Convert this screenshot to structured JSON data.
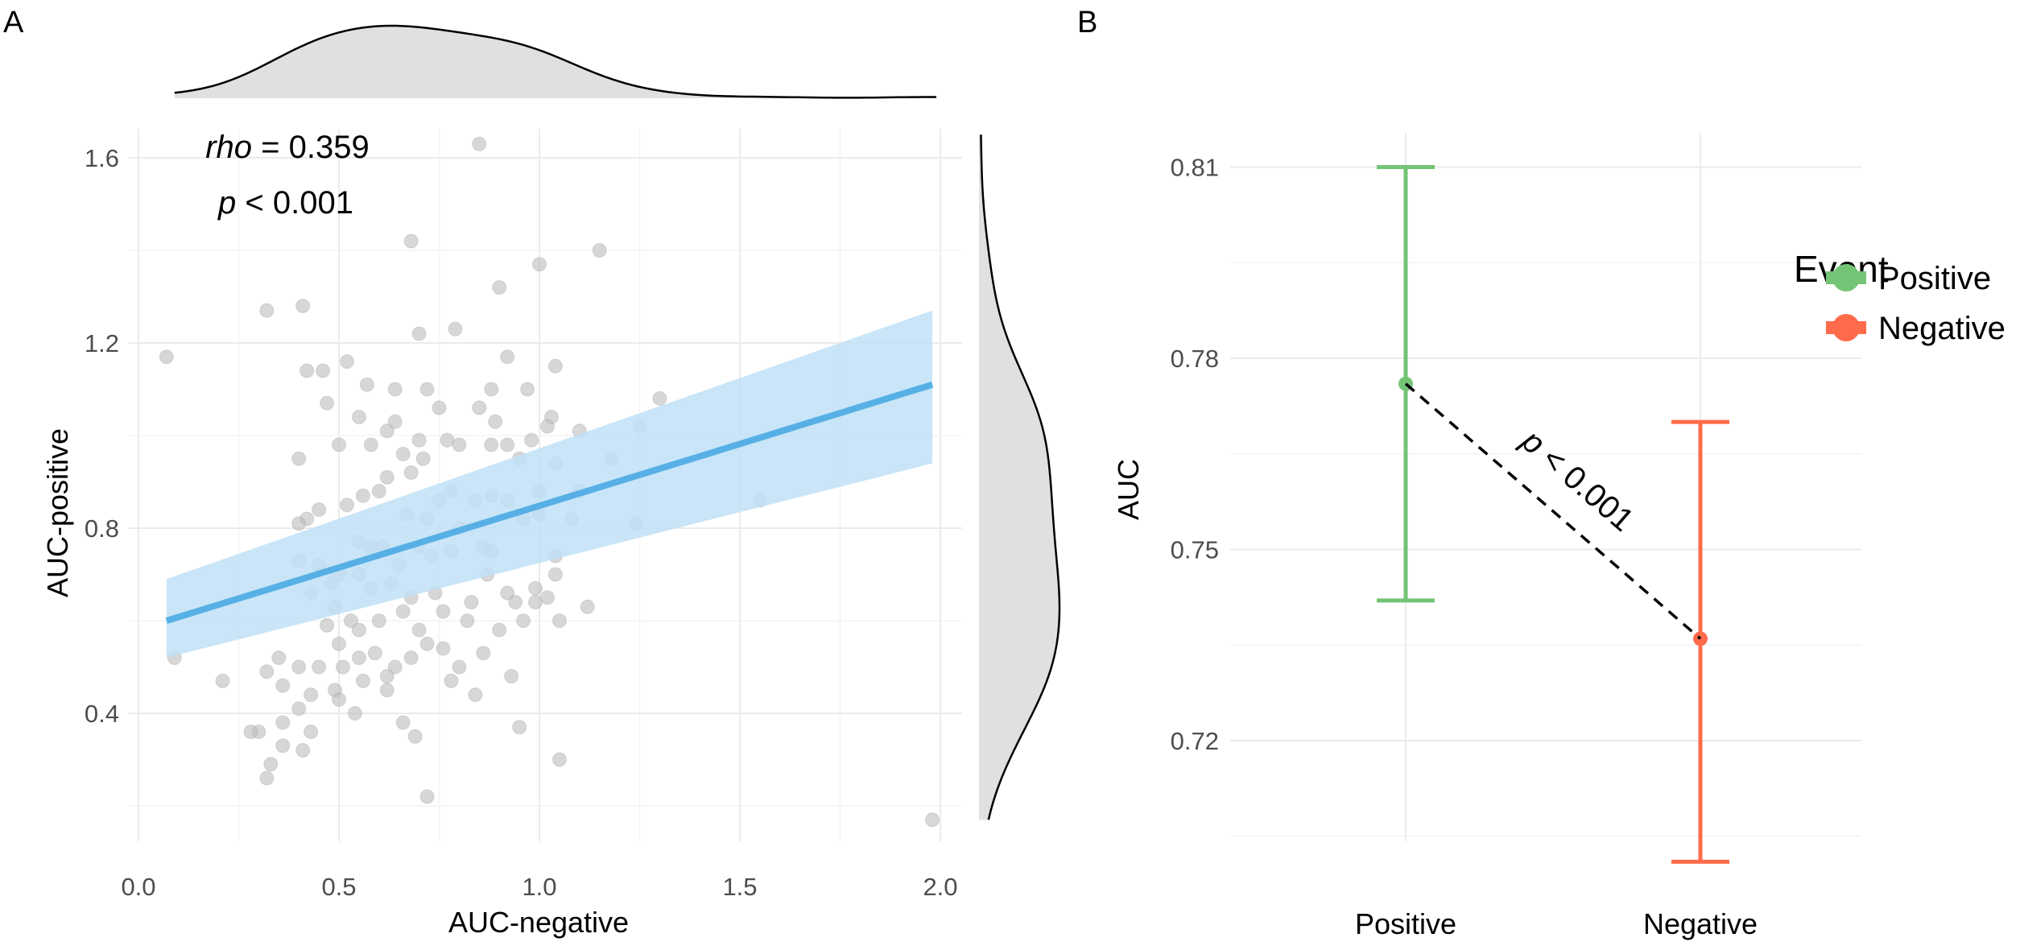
{
  "colors": {
    "point": "#bdbdbd",
    "fit_line": "#56b0e6",
    "ci_band": "#bfe1f6",
    "density_fill": "#e0e0e0",
    "positive": "#74c476",
    "negative": "#ff6b4a"
  },
  "chart_data": [
    {
      "panel_label": "A",
      "type": "scatter",
      "xlabel": "AUC-negative",
      "ylabel": "AUC-positive",
      "xlim": [
        -0.02,
        2.05
      ],
      "ylim": [
        0.13,
        1.7
      ],
      "xticks": [
        "0.0",
        "0.5",
        "1.0",
        "1.5",
        "2.0"
      ],
      "xtick_values": [
        0,
        0.5,
        1.0,
        1.5,
        2.0
      ],
      "yticks": [
        "0.4",
        "0.8",
        "1.2",
        "1.6"
      ],
      "ytick_values": [
        0.4,
        0.8,
        1.2,
        1.6
      ],
      "grid": true,
      "marginal_density": {
        "top": "AUC-negative",
        "right": "AUC-positive"
      },
      "annotation": {
        "rho_label": "rho",
        "rho_value": "= 0.359",
        "p_label": "p",
        "p_value": "< 0.001"
      },
      "fit": {
        "x": [
          0.07,
          1.98
        ],
        "y": [
          0.6,
          1.11
        ],
        "ci_lower": [
          0.52,
          0.94
        ],
        "ci_upper": [
          0.69,
          1.27
        ]
      },
      "points": [
        [
          0.85,
          1.63
        ],
        [
          0.68,
          1.42
        ],
        [
          1.15,
          1.4
        ],
        [
          1.0,
          1.37
        ],
        [
          0.9,
          1.32
        ],
        [
          0.32,
          1.27
        ],
        [
          0.41,
          1.28
        ],
        [
          0.07,
          1.17
        ],
        [
          0.7,
          1.22
        ],
        [
          0.79,
          1.23
        ],
        [
          0.52,
          1.16
        ],
        [
          0.92,
          1.17
        ],
        [
          1.04,
          1.15
        ],
        [
          0.42,
          1.14
        ],
        [
          0.46,
          1.14
        ],
        [
          0.57,
          1.11
        ],
        [
          0.72,
          1.1
        ],
        [
          0.64,
          1.1
        ],
        [
          0.97,
          1.1
        ],
        [
          1.3,
          1.08
        ],
        [
          0.85,
          1.06
        ],
        [
          0.75,
          1.06
        ],
        [
          0.88,
          1.1
        ],
        [
          0.47,
          1.07
        ],
        [
          0.55,
          1.04
        ],
        [
          0.64,
          1.03
        ],
        [
          0.62,
          1.01
        ],
        [
          1.03,
          1.04
        ],
        [
          0.89,
          1.03
        ],
        [
          1.25,
          1.02
        ],
        [
          0.58,
          0.98
        ],
        [
          0.5,
          0.98
        ],
        [
          0.4,
          0.95
        ],
        [
          0.7,
          0.99
        ],
        [
          0.77,
          0.99
        ],
        [
          0.8,
          0.98
        ],
        [
          0.88,
          0.98
        ],
        [
          0.92,
          0.98
        ],
        [
          0.98,
          0.99
        ],
        [
          1.02,
          1.02
        ],
        [
          1.1,
          1.01
        ],
        [
          1.18,
          0.95
        ],
        [
          0.66,
          0.96
        ],
        [
          0.71,
          0.95
        ],
        [
          0.95,
          0.95
        ],
        [
          1.04,
          0.94
        ],
        [
          0.62,
          0.91
        ],
        [
          0.68,
          0.92
        ],
        [
          0.56,
          0.87
        ],
        [
          0.6,
          0.88
        ],
        [
          0.52,
          0.85
        ],
        [
          0.45,
          0.84
        ],
        [
          0.84,
          0.86
        ],
        [
          0.88,
          0.87
        ],
        [
          1.0,
          0.88
        ],
        [
          1.1,
          0.88
        ],
        [
          0.78,
          0.88
        ],
        [
          0.42,
          0.82
        ],
        [
          0.4,
          0.81
        ],
        [
          0.67,
          0.83
        ],
        [
          0.72,
          0.82
        ],
        [
          0.8,
          0.8
        ],
        [
          0.92,
          0.86
        ],
        [
          0.75,
          0.86
        ],
        [
          0.96,
          0.82
        ],
        [
          1.0,
          0.83
        ],
        [
          1.08,
          0.82
        ],
        [
          1.24,
          0.81
        ],
        [
          1.55,
          0.86
        ],
        [
          0.55,
          0.77
        ],
        [
          0.61,
          0.76
        ],
        [
          0.65,
          0.72
        ],
        [
          0.58,
          0.76
        ],
        [
          0.7,
          0.76
        ],
        [
          0.73,
          0.74
        ],
        [
          0.78,
          0.75
        ],
        [
          0.86,
          0.76
        ],
        [
          0.88,
          0.75
        ],
        [
          1.04,
          0.74
        ],
        [
          1.04,
          0.7
        ],
        [
          0.4,
          0.73
        ],
        [
          0.45,
          0.72
        ],
        [
          0.5,
          0.7
        ],
        [
          0.55,
          0.7
        ],
        [
          0.48,
          0.68
        ],
        [
          0.58,
          0.67
        ],
        [
          0.63,
          0.68
        ],
        [
          0.68,
          0.65
        ],
        [
          0.74,
          0.66
        ],
        [
          0.76,
          0.62
        ],
        [
          0.83,
          0.64
        ],
        [
          0.87,
          0.7
        ],
        [
          0.92,
          0.66
        ],
        [
          0.94,
          0.64
        ],
        [
          0.99,
          0.67
        ],
        [
          1.02,
          0.65
        ],
        [
          1.05,
          0.6
        ],
        [
          1.12,
          0.63
        ],
        [
          0.43,
          0.66
        ],
        [
          0.49,
          0.63
        ],
        [
          0.53,
          0.6
        ],
        [
          0.55,
          0.58
        ],
        [
          0.6,
          0.6
        ],
        [
          0.66,
          0.62
        ],
        [
          0.7,
          0.58
        ],
        [
          0.82,
          0.6
        ],
        [
          0.9,
          0.58
        ],
        [
          0.96,
          0.6
        ],
        [
          0.99,
          0.64
        ],
        [
          0.47,
          0.59
        ],
        [
          0.5,
          0.55
        ],
        [
          0.55,
          0.52
        ],
        [
          0.59,
          0.53
        ],
        [
          0.64,
          0.5
        ],
        [
          0.68,
          0.52
        ],
        [
          0.72,
          0.55
        ],
        [
          0.76,
          0.54
        ],
        [
          0.8,
          0.5
        ],
        [
          0.86,
          0.53
        ],
        [
          0.93,
          0.48
        ],
        [
          0.62,
          0.48
        ],
        [
          0.45,
          0.5
        ],
        [
          0.51,
          0.5
        ],
        [
          0.35,
          0.52
        ],
        [
          0.4,
          0.5
        ],
        [
          0.32,
          0.49
        ],
        [
          0.21,
          0.47
        ],
        [
          0.09,
          0.52
        ],
        [
          0.36,
          0.46
        ],
        [
          0.43,
          0.44
        ],
        [
          0.49,
          0.45
        ],
        [
          0.5,
          0.43
        ],
        [
          0.56,
          0.47
        ],
        [
          0.62,
          0.45
        ],
        [
          0.78,
          0.47
        ],
        [
          0.84,
          0.44
        ],
        [
          0.4,
          0.41
        ],
        [
          0.36,
          0.38
        ],
        [
          0.3,
          0.36
        ],
        [
          0.43,
          0.36
        ],
        [
          0.54,
          0.4
        ],
        [
          0.66,
          0.38
        ],
        [
          0.69,
          0.35
        ],
        [
          0.95,
          0.37
        ],
        [
          0.41,
          0.32
        ],
        [
          0.33,
          0.29
        ],
        [
          0.32,
          0.26
        ],
        [
          0.36,
          0.33
        ],
        [
          0.72,
          0.22
        ],
        [
          1.05,
          0.3
        ],
        [
          1.98,
          0.17
        ],
        [
          0.28,
          0.36
        ]
      ]
    },
    {
      "panel_label": "B",
      "type": "errorbar",
      "xlabel": "",
      "ylabel": "AUC",
      "ylim": [
        0.703,
        0.815
      ],
      "yticks": [
        "0.72",
        "0.75",
        "0.78",
        "0.81"
      ],
      "ytick_values": [
        0.72,
        0.75,
        0.78,
        0.81
      ],
      "categories": [
        "Positive",
        "Negative"
      ],
      "grid": true,
      "legend": {
        "title": "Event",
        "placement": "right",
        "entries": [
          "Positive",
          "Negative"
        ]
      },
      "series": [
        {
          "name": "Positive",
          "value": 0.776,
          "lower": 0.742,
          "upper": 0.81
        },
        {
          "name": "Negative",
          "value": 0.736,
          "lower": 0.701,
          "upper": 0.77
        }
      ],
      "annotation": {
        "p_label": "p",
        "p_value": "< 0.001"
      }
    }
  ]
}
